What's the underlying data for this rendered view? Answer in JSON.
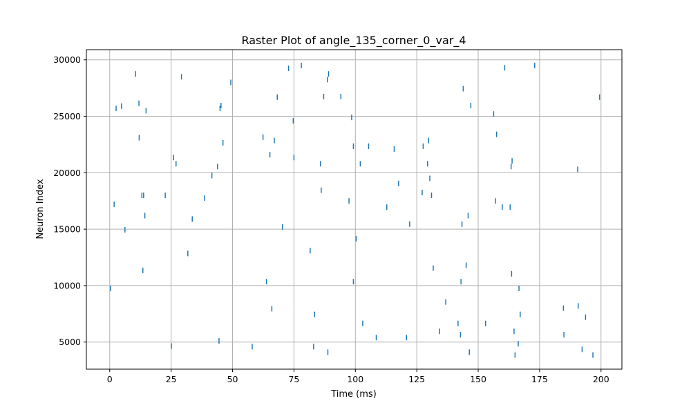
{
  "chart_data": {
    "type": "scatter",
    "marker": "vertical-line",
    "title": "Raster Plot of angle_135_corner_0_var_4",
    "xlabel": "Time (ms)",
    "ylabel": "Neuron Index",
    "xlim": [
      -9.5,
      208.5
    ],
    "ylim": [
      2600,
      30900
    ],
    "grid": true,
    "color": "#1f77b4",
    "xticks": [
      0,
      25,
      50,
      75,
      100,
      125,
      150,
      175,
      200
    ],
    "xtick_labels": [
      "0",
      "25",
      "50",
      "75",
      "100",
      "125",
      "150",
      "175",
      "200"
    ],
    "yticks": [
      5000,
      10000,
      15000,
      20000,
      25000,
      30000
    ],
    "ytick_labels": [
      "5000",
      "10000",
      "15000",
      "20000",
      "25000",
      "30000"
    ],
    "points": [
      [
        0.3,
        9750
      ],
      [
        1.8,
        17200
      ],
      [
        2.6,
        25700
      ],
      [
        4.8,
        25900
      ],
      [
        6.2,
        14950
      ],
      [
        10.5,
        28750
      ],
      [
        11.9,
        26150
      ],
      [
        12.0,
        23100
      ],
      [
        13.1,
        18000
      ],
      [
        13.5,
        11350
      ],
      [
        13.8,
        18000
      ],
      [
        14.3,
        16200
      ],
      [
        14.8,
        25500
      ],
      [
        22.6,
        18000
      ],
      [
        25.1,
        4650
      ],
      [
        26.0,
        21350
      ],
      [
        27.0,
        20800
      ],
      [
        29.2,
        28500
      ],
      [
        31.8,
        12850
      ],
      [
        33.6,
        15900
      ],
      [
        38.6,
        17750
      ],
      [
        41.6,
        19750
      ],
      [
        43.9,
        20550
      ],
      [
        44.5,
        5100
      ],
      [
        44.9,
        25700
      ],
      [
        45.3,
        25950
      ],
      [
        46.1,
        22650
      ],
      [
        49.3,
        28000
      ],
      [
        58.0,
        4600
      ],
      [
        62.4,
        23150
      ],
      [
        63.8,
        10350
      ],
      [
        65.2,
        21600
      ],
      [
        66.0,
        7950
      ],
      [
        67.0,
        22850
      ],
      [
        68.2,
        26700
      ],
      [
        70.3,
        15200
      ],
      [
        72.8,
        29250
      ],
      [
        74.7,
        24600
      ],
      [
        75.0,
        21350
      ],
      [
        78.0,
        29500
      ],
      [
        81.6,
        13100
      ],
      [
        83.0,
        4600
      ],
      [
        83.4,
        7450
      ],
      [
        85.8,
        20800
      ],
      [
        86.1,
        18450
      ],
      [
        87.1,
        26750
      ],
      [
        88.6,
        28250
      ],
      [
        88.8,
        4100
      ],
      [
        89.1,
        28750
      ],
      [
        94.1,
        26750
      ],
      [
        97.4,
        17500
      ],
      [
        98.5,
        24900
      ],
      [
        99.2,
        22350
      ],
      [
        99.2,
        10350
      ],
      [
        100.3,
        14150
      ],
      [
        102.0,
        20800
      ],
      [
        103.0,
        6650
      ],
      [
        105.4,
        22350
      ],
      [
        108.5,
        5400
      ],
      [
        112.8,
        16950
      ],
      [
        115.8,
        22100
      ],
      [
        117.6,
        19050
      ],
      [
        120.8,
        5400
      ],
      [
        122.1,
        15450
      ],
      [
        127.2,
        18250
      ],
      [
        127.6,
        22350
      ],
      [
        129.4,
        20800
      ],
      [
        129.8,
        22850
      ],
      [
        130.3,
        19500
      ],
      [
        131.0,
        18000
      ],
      [
        131.7,
        11550
      ],
      [
        134.3,
        5950
      ],
      [
        136.8,
        8550
      ],
      [
        141.8,
        6650
      ],
      [
        142.8,
        5650
      ],
      [
        143.0,
        10350
      ],
      [
        143.4,
        15450
      ],
      [
        143.9,
        27450
      ],
      [
        145.1,
        11800
      ],
      [
        145.9,
        16200
      ],
      [
        146.4,
        4100
      ],
      [
        147.0,
        25950
      ],
      [
        153.0,
        6650
      ],
      [
        156.3,
        25200
      ],
      [
        157.0,
        17500
      ],
      [
        157.5,
        23400
      ],
      [
        159.8,
        16950
      ],
      [
        160.8,
        29300
      ],
      [
        163.0,
        16950
      ],
      [
        163.4,
        20550
      ],
      [
        163.6,
        11050
      ],
      [
        163.8,
        21050
      ],
      [
        164.6,
        5950
      ],
      [
        165.0,
        3850
      ],
      [
        166.3,
        4850
      ],
      [
        166.6,
        9750
      ],
      [
        167.1,
        7450
      ],
      [
        173.0,
        29500
      ],
      [
        184.7,
        8000
      ],
      [
        184.9,
        5650
      ],
      [
        190.5,
        20300
      ],
      [
        190.7,
        8200
      ],
      [
        192.3,
        4350
      ],
      [
        193.7,
        7200
      ],
      [
        196.7,
        3850
      ],
      [
        199.4,
        26700
      ]
    ]
  }
}
